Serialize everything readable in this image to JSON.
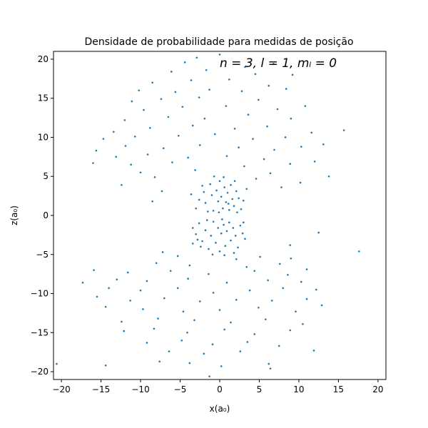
{
  "chart_data": {
    "type": "scatter",
    "title": "Densidade de probabilidade para medidas de posição",
    "xlabel": "x(a₀)",
    "ylabel": "z(a₀)",
    "annotation": "n = 3, l = 1, mₗ = 0",
    "xlim": [
      -21,
      21
    ],
    "ylim": [
      -21,
      21
    ],
    "xticks": [
      -20,
      -15,
      -10,
      -5,
      0,
      5,
      10,
      15,
      20
    ],
    "yticks": [
      -20,
      -15,
      -10,
      -5,
      0,
      5,
      10,
      15,
      20
    ],
    "grid": false,
    "marker_color": "#1f77b4",
    "series": [
      {
        "points": [
          [
            0.0,
            20.6
          ],
          [
            -2.9,
            20.2
          ],
          [
            -4.4,
            19.6
          ],
          [
            3.2,
            19.0
          ],
          [
            6.8,
            19.4
          ],
          [
            -6.1,
            18.4
          ],
          [
            -1.7,
            18.6
          ],
          [
            4.5,
            18.1
          ],
          [
            9.2,
            18.0
          ],
          [
            -8.5,
            17.0
          ],
          [
            -3.6,
            17.3
          ],
          [
            1.2,
            17.4
          ],
          [
            6.2,
            16.6
          ],
          [
            -10.2,
            16.0
          ],
          [
            -5.6,
            15.8
          ],
          [
            -1.3,
            16.1
          ],
          [
            2.8,
            15.9
          ],
          [
            8.4,
            16.2
          ],
          [
            -11.1,
            14.6
          ],
          [
            -7.4,
            14.9
          ],
          [
            -2.6,
            15.1
          ],
          [
            4.9,
            14.8
          ],
          [
            10.8,
            14.0
          ],
          [
            -9.6,
            13.5
          ],
          [
            -4.7,
            13.9
          ],
          [
            0.8,
            14.0
          ],
          [
            7.3,
            13.6
          ],
          [
            -12.0,
            12.2
          ],
          [
            -6.5,
            12.6
          ],
          [
            -1.9,
            12.4
          ],
          [
            3.6,
            12.9
          ],
          [
            9.0,
            12.4
          ],
          [
            -13.4,
            10.7
          ],
          [
            -8.8,
            11.2
          ],
          [
            -3.4,
            11.5
          ],
          [
            1.9,
            11.1
          ],
          [
            6.0,
            11.4
          ],
          [
            11.6,
            10.6
          ],
          [
            15.7,
            10.9
          ],
          [
            -14.7,
            9.8
          ],
          [
            -10.7,
            10.1
          ],
          [
            -5.2,
            10.2
          ],
          [
            -0.6,
            10.4
          ],
          [
            4.2,
            9.8
          ],
          [
            8.3,
            10.0
          ],
          [
            13.1,
            9.1
          ],
          [
            -15.6,
            8.3
          ],
          [
            -11.9,
            8.9
          ],
          [
            -7.1,
            8.6
          ],
          [
            -2.5,
            9.0
          ],
          [
            2.4,
            8.7
          ],
          [
            6.9,
            8.4
          ],
          [
            10.3,
            8.8
          ],
          [
            -13.1,
            7.5
          ],
          [
            -9.1,
            7.8
          ],
          [
            -4.0,
            7.4
          ],
          [
            0.9,
            7.6
          ],
          [
            5.6,
            7.2
          ],
          [
            12.0,
            6.9
          ],
          [
            -16.0,
            6.7
          ],
          [
            -11.2,
            6.5
          ],
          [
            -6.0,
            6.8
          ],
          [
            3.1,
            6.3
          ],
          [
            8.9,
            6.6
          ],
          [
            -10.0,
            5.5
          ],
          [
            -3.1,
            5.8
          ],
          [
            6.4,
            5.4
          ],
          [
            13.8,
            5.0
          ],
          [
            -12.4,
            3.9
          ],
          [
            -8.2,
            4.9
          ],
          [
            4.6,
            4.7
          ],
          [
            10.2,
            4.2
          ],
          [
            -7.3,
            3.1
          ],
          [
            7.8,
            3.6
          ],
          [
            -8.5,
            1.8
          ],
          [
            -3.6,
            2.7
          ],
          [
            -3.0,
            0.9
          ],
          [
            -2.2,
            3.8
          ],
          [
            -1.8,
            1.6
          ],
          [
            -1.2,
            4.0
          ],
          [
            -1.0,
            2.6
          ],
          [
            -0.8,
            0.6
          ],
          [
            -0.4,
            3.2
          ],
          [
            -0.2,
            1.8
          ],
          [
            0.0,
            4.4
          ],
          [
            0.2,
            2.4
          ],
          [
            0.4,
            0.9
          ],
          [
            0.6,
            3.6
          ],
          [
            0.8,
            1.7
          ],
          [
            1.0,
            2.9
          ],
          [
            1.2,
            0.7
          ],
          [
            1.4,
            3.9
          ],
          [
            1.6,
            2.1
          ],
          [
            1.8,
            1.2
          ],
          [
            2.1,
            3.1
          ],
          [
            2.4,
            2.2
          ],
          [
            2.7,
            0.8
          ],
          [
            3.0,
            1.9
          ],
          [
            3.4,
            3.4
          ],
          [
            -2.6,
            2.0
          ],
          [
            -1.5,
            0.5
          ],
          [
            -0.1,
            0.4
          ],
          [
            1.1,
            1.5
          ],
          [
            2.2,
            0.4
          ],
          [
            -2.0,
            3.0
          ],
          [
            0.5,
            4.9
          ],
          [
            -0.7,
            5.0
          ],
          [
            1.9,
            4.4
          ],
          [
            -3.4,
            -1.6
          ],
          [
            -3.0,
            -2.4
          ],
          [
            -2.6,
            -1.0
          ],
          [
            -2.2,
            -3.3
          ],
          [
            -1.8,
            -1.9
          ],
          [
            -1.4,
            -4.3
          ],
          [
            -1.1,
            -2.6
          ],
          [
            -0.8,
            -0.8
          ],
          [
            -0.5,
            -3.5
          ],
          [
            -0.2,
            -1.6
          ],
          [
            0.0,
            -4.6
          ],
          [
            0.2,
            -2.3
          ],
          [
            0.5,
            -1.2
          ],
          [
            0.7,
            -3.9
          ],
          [
            0.9,
            -2.0
          ],
          [
            1.2,
            -0.9
          ],
          [
            1.4,
            -3.2
          ],
          [
            1.7,
            -1.6
          ],
          [
            2.0,
            -2.6
          ],
          [
            2.3,
            -4.1
          ],
          [
            2.6,
            -1.3
          ],
          [
            2.9,
            -2.3
          ],
          [
            3.2,
            -3.0
          ],
          [
            -2.4,
            -4.0
          ],
          [
            -0.9,
            -5.0
          ],
          [
            0.6,
            -5.1
          ],
          [
            1.8,
            -4.8
          ],
          [
            -1.6,
            -0.6
          ],
          [
            0.3,
            -0.5
          ],
          [
            -2.8,
            -3.1
          ],
          [
            3.0,
            -0.9
          ],
          [
            -3.4,
            -3.6
          ],
          [
            12.5,
            -2.2
          ],
          [
            17.6,
            -4.6
          ],
          [
            8.9,
            -3.8
          ],
          [
            -7.2,
            -4.7
          ],
          [
            9.0,
            -5.5
          ],
          [
            -5.3,
            -5.2
          ],
          [
            2.1,
            -5.6
          ],
          [
            5.1,
            -5.3
          ],
          [
            -8.0,
            -6.1
          ],
          [
            -3.8,
            -6.4
          ],
          [
            3.4,
            -6.6
          ],
          [
            7.6,
            -6.2
          ],
          [
            11.0,
            -6.9
          ],
          [
            -15.9,
            -7.0
          ],
          [
            -11.6,
            -7.3
          ],
          [
            -6.2,
            -7.1
          ],
          [
            -1.4,
            -7.5
          ],
          [
            4.4,
            -7.1
          ],
          [
            8.6,
            -7.6
          ],
          [
            -13.0,
            -8.2
          ],
          [
            -9.2,
            -8.4
          ],
          [
            -4.0,
            -8.1
          ],
          [
            0.9,
            -8.6
          ],
          [
            6.1,
            -8.3
          ],
          [
            10.3,
            -8.5
          ],
          [
            -17.3,
            -8.6
          ],
          [
            -14.0,
            -9.3
          ],
          [
            -10.0,
            -9.6
          ],
          [
            -5.3,
            -9.3
          ],
          [
            -0.8,
            -9.9
          ],
          [
            3.8,
            -9.6
          ],
          [
            8.0,
            -9.3
          ],
          [
            12.2,
            -9.5
          ],
          [
            -15.5,
            -10.4
          ],
          [
            -11.3,
            -10.9
          ],
          [
            -7.0,
            -10.6
          ],
          [
            -2.5,
            -11.0
          ],
          [
            2.1,
            -10.8
          ],
          [
            6.6,
            -10.9
          ],
          [
            11.0,
            -10.7
          ],
          [
            -14.4,
            -11.7
          ],
          [
            -9.7,
            -12.0
          ],
          [
            -4.6,
            -12.3
          ],
          [
            0.0,
            -12.1
          ],
          [
            4.9,
            -11.8
          ],
          [
            9.6,
            -12.3
          ],
          [
            12.9,
            -11.5
          ],
          [
            -12.4,
            -13.6
          ],
          [
            -7.8,
            -13.2
          ],
          [
            -3.2,
            -13.4
          ],
          [
            1.4,
            -13.7
          ],
          [
            5.8,
            -13.3
          ],
          [
            10.5,
            -13.9
          ],
          [
            -12.1,
            -14.8
          ],
          [
            -8.3,
            -14.5
          ],
          [
            -4.1,
            -15.0
          ],
          [
            0.6,
            -14.6
          ],
          [
            4.4,
            -15.2
          ],
          [
            8.9,
            -14.7
          ],
          [
            -9.2,
            -16.3
          ],
          [
            -4.8,
            -16.0
          ],
          [
            -0.9,
            -16.5
          ],
          [
            3.5,
            -16.2
          ],
          [
            7.5,
            -16.7
          ],
          [
            -6.4,
            -17.4
          ],
          [
            -2.0,
            -17.7
          ],
          [
            2.6,
            -17.4
          ],
          [
            11.9,
            -17.3
          ],
          [
            -7.6,
            -18.7
          ],
          [
            -3.8,
            -18.9
          ],
          [
            0.2,
            -19.3
          ],
          [
            6.2,
            -19.0
          ],
          [
            -14.4,
            -19.2
          ],
          [
            -20.6,
            -19.0
          ],
          [
            6.4,
            -19.6
          ],
          [
            -1.3,
            -20.6
          ]
        ]
      }
    ]
  }
}
